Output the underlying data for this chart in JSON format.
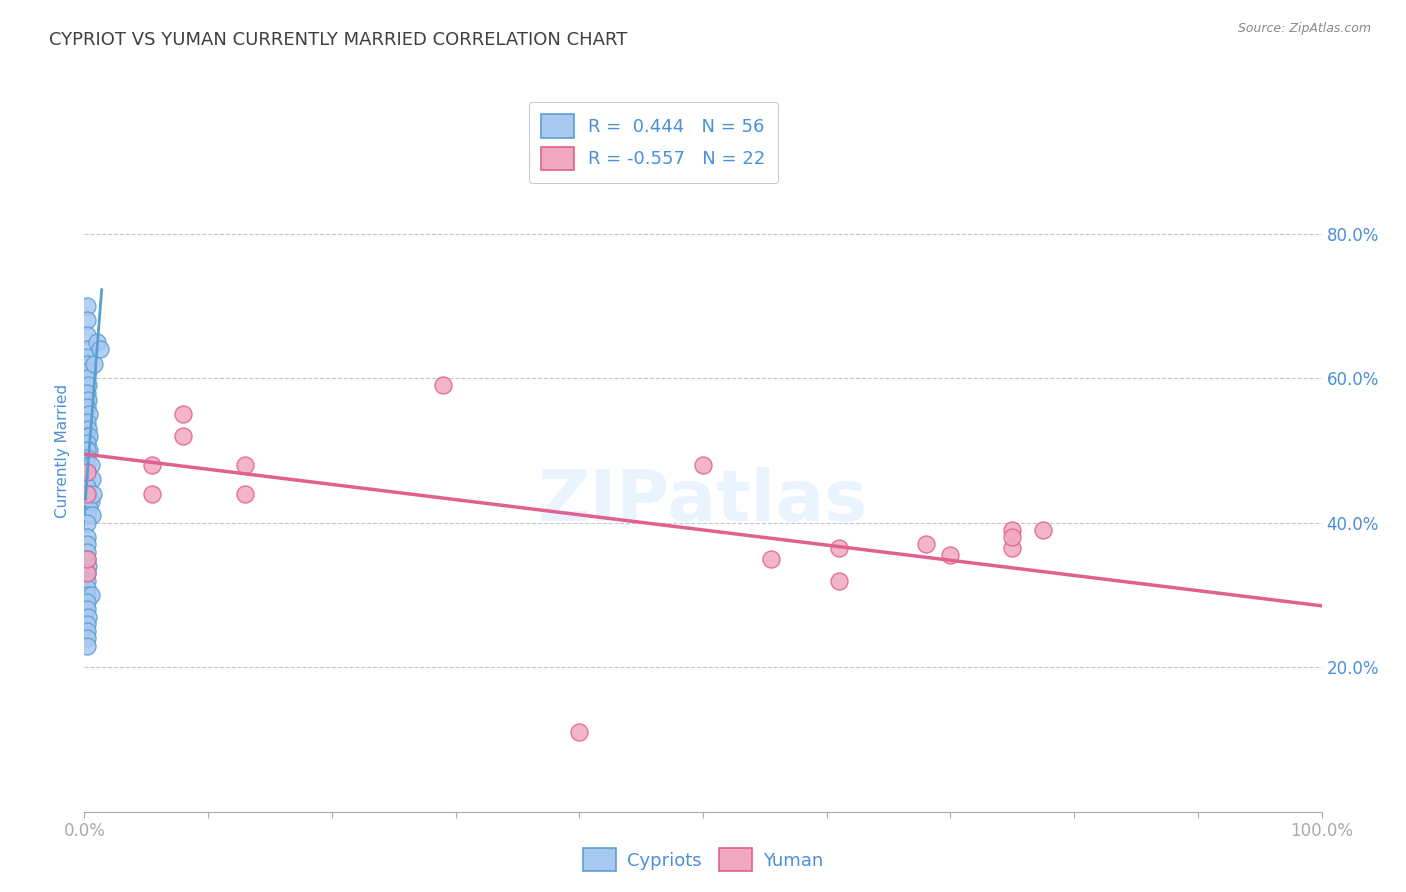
{
  "title": "CYPRIOT VS YUMAN CURRENTLY MARRIED CORRELATION CHART",
  "source": "Source: ZipAtlas.com",
  "xlabel": "",
  "ylabel": "Currently Married",
  "xlim": [
    0.0,
    1.0
  ],
  "ylim": [
    0.0,
    1.0
  ],
  "blue_R": 0.444,
  "blue_N": 56,
  "pink_R": -0.557,
  "pink_N": 22,
  "blue_color": "#a8c8f0",
  "pink_color": "#f0a8c0",
  "blue_line_color": "#5a9fd4",
  "pink_line_color": "#e06090",
  "blue_scatter": [
    [
      0.002,
      0.7
    ],
    [
      0.002,
      0.68
    ],
    [
      0.002,
      0.66
    ],
    [
      0.002,
      0.64
    ],
    [
      0.002,
      0.63
    ],
    [
      0.002,
      0.62
    ],
    [
      0.003,
      0.61
    ],
    [
      0.002,
      0.6
    ],
    [
      0.003,
      0.59
    ],
    [
      0.002,
      0.58
    ],
    [
      0.003,
      0.57
    ],
    [
      0.002,
      0.56
    ],
    [
      0.004,
      0.55
    ],
    [
      0.002,
      0.54
    ],
    [
      0.003,
      0.53
    ],
    [
      0.002,
      0.52
    ],
    [
      0.004,
      0.52
    ],
    [
      0.002,
      0.51
    ],
    [
      0.004,
      0.5
    ],
    [
      0.002,
      0.5
    ],
    [
      0.002,
      0.49
    ],
    [
      0.002,
      0.48
    ],
    [
      0.005,
      0.48
    ],
    [
      0.002,
      0.47
    ],
    [
      0.002,
      0.46
    ],
    [
      0.006,
      0.46
    ],
    [
      0.002,
      0.45
    ],
    [
      0.003,
      0.44
    ],
    [
      0.002,
      0.43
    ],
    [
      0.005,
      0.43
    ],
    [
      0.002,
      0.42
    ],
    [
      0.004,
      0.42
    ],
    [
      0.002,
      0.41
    ],
    [
      0.006,
      0.41
    ],
    [
      0.002,
      0.4
    ],
    [
      0.007,
      0.44
    ],
    [
      0.008,
      0.62
    ],
    [
      0.01,
      0.65
    ],
    [
      0.013,
      0.64
    ],
    [
      0.002,
      0.38
    ],
    [
      0.002,
      0.37
    ],
    [
      0.002,
      0.36
    ],
    [
      0.002,
      0.35
    ],
    [
      0.003,
      0.34
    ],
    [
      0.002,
      0.33
    ],
    [
      0.002,
      0.32
    ],
    [
      0.002,
      0.31
    ],
    [
      0.002,
      0.3
    ],
    [
      0.005,
      0.3
    ],
    [
      0.002,
      0.29
    ],
    [
      0.002,
      0.28
    ],
    [
      0.003,
      0.27
    ],
    [
      0.002,
      0.26
    ],
    [
      0.002,
      0.25
    ],
    [
      0.002,
      0.24
    ],
    [
      0.002,
      0.23
    ]
  ],
  "pink_scatter": [
    [
      0.002,
      0.33
    ],
    [
      0.002,
      0.47
    ],
    [
      0.002,
      0.44
    ],
    [
      0.055,
      0.48
    ],
    [
      0.055,
      0.44
    ],
    [
      0.08,
      0.55
    ],
    [
      0.08,
      0.52
    ],
    [
      0.13,
      0.48
    ],
    [
      0.13,
      0.44
    ],
    [
      0.002,
      0.35
    ],
    [
      0.29,
      0.59
    ],
    [
      0.5,
      0.48
    ],
    [
      0.555,
      0.35
    ],
    [
      0.61,
      0.365
    ],
    [
      0.68,
      0.37
    ],
    [
      0.7,
      0.355
    ],
    [
      0.75,
      0.39
    ],
    [
      0.775,
      0.39
    ],
    [
      0.4,
      0.11
    ],
    [
      0.61,
      0.32
    ],
    [
      0.75,
      0.365
    ],
    [
      0.75,
      0.38
    ]
  ],
  "blue_trend_y_intercept": 0.415,
  "blue_trend_slope": 22.0,
  "pink_trend_y_start": 0.495,
  "pink_trend_y_end": 0.285,
  "background_color": "#ffffff",
  "grid_color": "#c8c8c8",
  "title_color": "#404040",
  "axis_label_color": "#4a90d9",
  "source_color": "#888888",
  "legend_blue_label": "Cypriots",
  "legend_pink_label": "Yuman",
  "watermark": "ZIPatlas",
  "watermark_color": "#ddeeff"
}
